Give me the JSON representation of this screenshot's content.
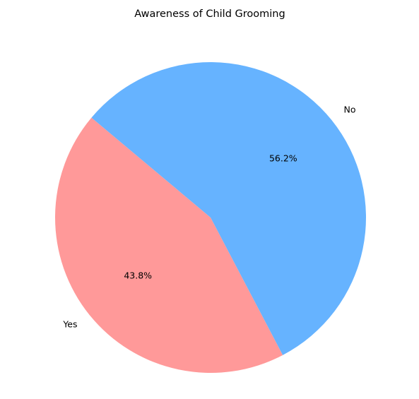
{
  "chart_data": {
    "type": "pie",
    "title": "Awareness of Child Grooming",
    "slices": [
      {
        "label": "Yes",
        "value": 43.8,
        "pct_label": "43.8%",
        "color": "#ff9999"
      },
      {
        "label": "No",
        "value": 56.2,
        "pct_label": "56.2%",
        "color": "#66b3ff"
      }
    ],
    "start_angle_deg": 140,
    "direction": "counterclockwise"
  }
}
